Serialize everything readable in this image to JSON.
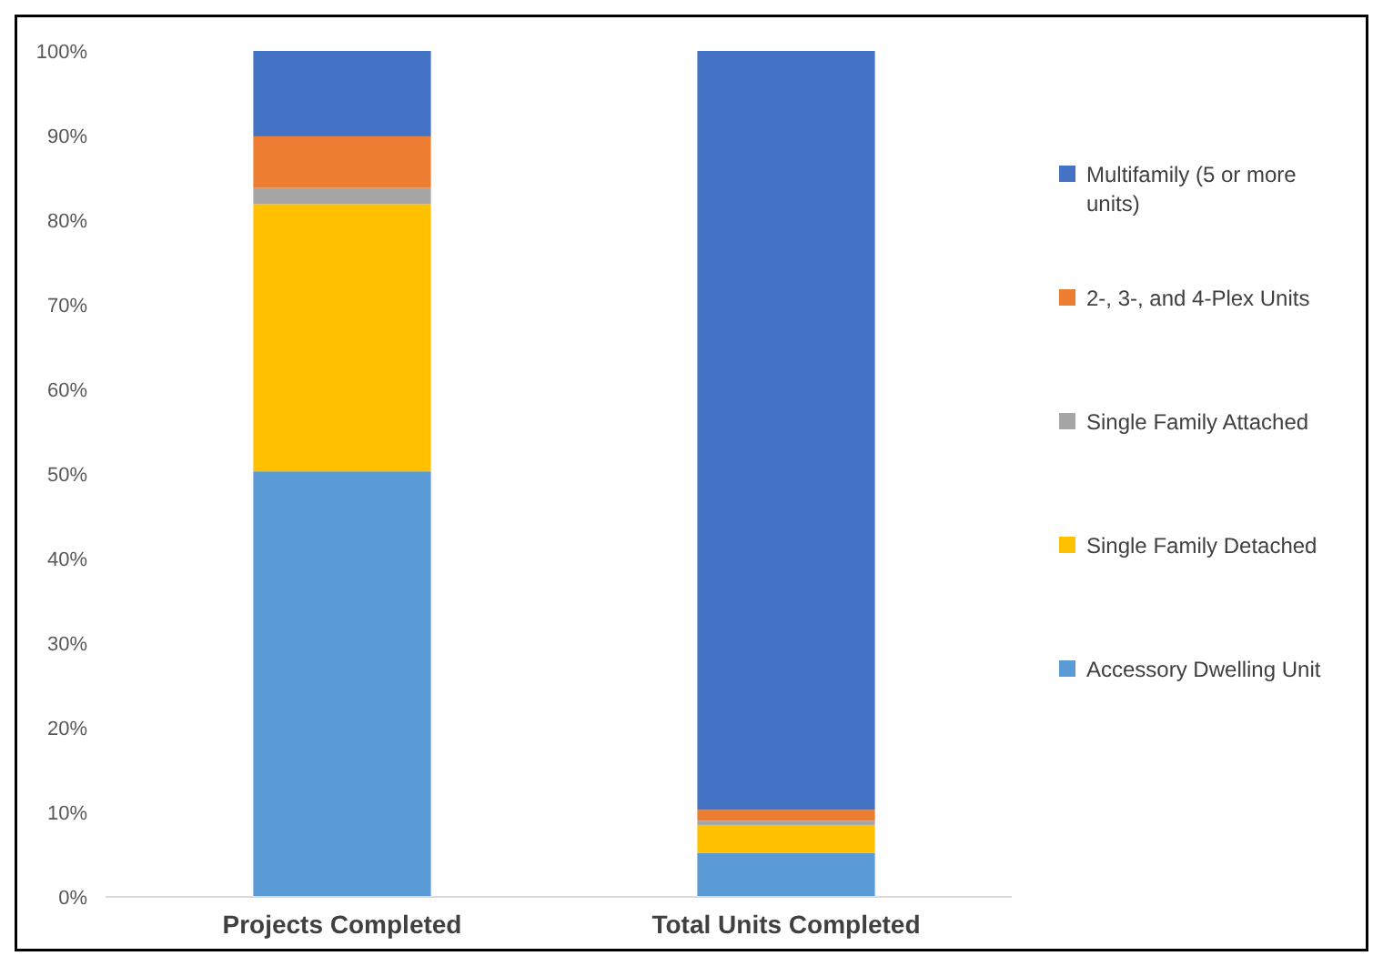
{
  "chart_data": {
    "type": "bar",
    "stacked": true,
    "categories": [
      "Projects Completed",
      "Total Units Completed"
    ],
    "series": [
      {
        "name": "Accessory Dwelling Unit",
        "color": "#5b9bd5",
        "values": [
          50.3,
          5.2
        ]
      },
      {
        "name": "Single Family Detached",
        "color": "#ffc000",
        "values": [
          31.6,
          3.3
        ]
      },
      {
        "name": "Single Family Attached",
        "color": "#a5a5a5",
        "values": [
          1.9,
          0.5
        ]
      },
      {
        "name": "2-, 3-, and 4-Plex Units",
        "color": "#ed7d31",
        "values": [
          6.1,
          1.3
        ]
      },
      {
        "name": "Multifamily (5 or more units)",
        "color": "#4472c4",
        "values": [
          10.1,
          89.7
        ]
      }
    ],
    "ylim": [
      0,
      100
    ],
    "yticks": [
      {
        "value": 0,
        "label": "0%"
      },
      {
        "value": 10,
        "label": "10%"
      },
      {
        "value": 20,
        "label": "20%"
      },
      {
        "value": 30,
        "label": "30%"
      },
      {
        "value": 40,
        "label": "40%"
      },
      {
        "value": 50,
        "label": "50%"
      },
      {
        "value": 60,
        "label": "60%"
      },
      {
        "value": 70,
        "label": "70%"
      },
      {
        "value": 80,
        "label": "80%"
      },
      {
        "value": 90,
        "label": "90%"
      },
      {
        "value": 100,
        "label": "100%"
      }
    ],
    "grid": false,
    "legend": "right"
  }
}
